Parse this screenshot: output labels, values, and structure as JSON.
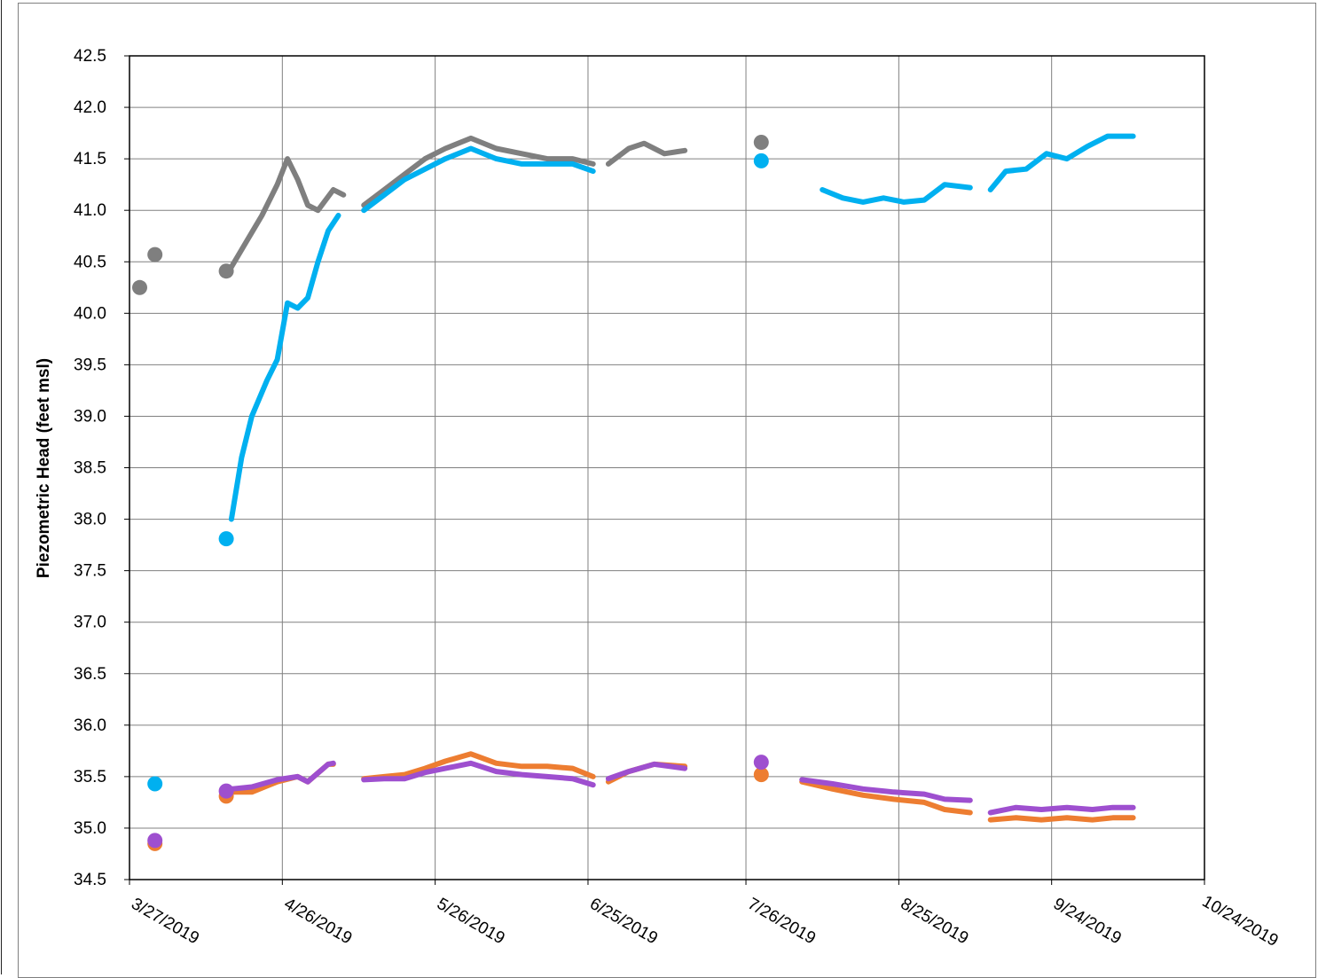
{
  "chart_data": {
    "type": "line",
    "title": "",
    "xlabel": "",
    "ylabel": "Piezometric Head (feet  msl)",
    "grid": true,
    "legend": "none",
    "xlim": [
      "2019-03-27",
      "2019-10-24"
    ],
    "ylim": [
      34.5,
      42.5
    ],
    "x_ticks": [
      "3/27/2019",
      "4/26/2019",
      "5/26/2019",
      "6/25/2019",
      "7/26/2019",
      "8/25/2019",
      "9/24/2019",
      "10/24/2019"
    ],
    "y_ticks": [
      "34.5",
      "35.0",
      "35.5",
      "36.0",
      "36.5",
      "37.0",
      "37.5",
      "38.0",
      "38.5",
      "39.0",
      "39.5",
      "40.0",
      "40.5",
      "41.0",
      "41.5",
      "42.0",
      "42.5"
    ],
    "series": [
      {
        "color": "#7f7f7f",
        "marker_points": [
          [
            "2019-03-29",
            40.25
          ],
          [
            "2019-04-01",
            40.57
          ],
          [
            "2019-04-15",
            40.41
          ],
          [
            "2019-07-29",
            41.66
          ]
        ],
        "segments": [
          [
            [
              "2019-04-16",
              40.45
            ],
            [
              "2019-04-19",
              40.7
            ],
            [
              "2019-04-22",
              40.95
            ],
            [
              "2019-04-25",
              41.25
            ],
            [
              "2019-04-27",
              41.5
            ],
            [
              "2019-04-29",
              41.3
            ],
            [
              "2019-05-01",
              41.05
            ],
            [
              "2019-05-03",
              41.0
            ],
            [
              "2019-05-06",
              41.2
            ],
            [
              "2019-05-08",
              41.15
            ]
          ],
          [
            [
              "2019-05-12",
              41.05
            ],
            [
              "2019-05-16",
              41.2
            ],
            [
              "2019-05-20",
              41.35
            ],
            [
              "2019-05-24",
              41.5
            ],
            [
              "2019-05-28",
              41.6
            ],
            [
              "2019-06-02",
              41.7
            ],
            [
              "2019-06-07",
              41.6
            ],
            [
              "2019-06-12",
              41.55
            ],
            [
              "2019-06-17",
              41.5
            ],
            [
              "2019-06-22",
              41.5
            ],
            [
              "2019-06-26",
              41.45
            ]
          ],
          [
            [
              "2019-06-29",
              41.45
            ],
            [
              "2019-07-03",
              41.6
            ],
            [
              "2019-07-06",
              41.65
            ],
            [
              "2019-07-10",
              41.55
            ],
            [
              "2019-07-14",
              41.58
            ]
          ]
        ]
      },
      {
        "color": "#00b0f0",
        "marker_points": [
          [
            "2019-04-01",
            35.43
          ],
          [
            "2019-04-15",
            37.81
          ],
          [
            "2019-07-29",
            41.48
          ]
        ],
        "segments": [
          [
            [
              "2019-04-16",
              38.0
            ],
            [
              "2019-04-18",
              38.6
            ],
            [
              "2019-04-20",
              39.0
            ],
            [
              "2019-04-23",
              39.35
            ],
            [
              "2019-04-25",
              39.55
            ],
            [
              "2019-04-27",
              40.1
            ],
            [
              "2019-04-29",
              40.05
            ],
            [
              "2019-05-01",
              40.15
            ],
            [
              "2019-05-03",
              40.5
            ],
            [
              "2019-05-05",
              40.8
            ],
            [
              "2019-05-07",
              40.95
            ]
          ],
          [
            [
              "2019-05-12",
              41.0
            ],
            [
              "2019-05-16",
              41.15
            ],
            [
              "2019-05-20",
              41.3
            ],
            [
              "2019-05-24",
              41.4
            ],
            [
              "2019-05-28",
              41.5
            ],
            [
              "2019-06-02",
              41.6
            ],
            [
              "2019-06-07",
              41.5
            ],
            [
              "2019-06-12",
              41.45
            ],
            [
              "2019-06-17",
              41.45
            ],
            [
              "2019-06-22",
              41.45
            ],
            [
              "2019-06-26",
              41.38
            ]
          ],
          [
            [
              "2019-08-10",
              41.2
            ],
            [
              "2019-08-14",
              41.12
            ],
            [
              "2019-08-18",
              41.08
            ],
            [
              "2019-08-22",
              41.12
            ],
            [
              "2019-08-26",
              41.08
            ],
            [
              "2019-08-30",
              41.1
            ],
            [
              "2019-09-03",
              41.25
            ],
            [
              "2019-09-08",
              41.22
            ]
          ],
          [
            [
              "2019-09-12",
              41.2
            ],
            [
              "2019-09-15",
              41.38
            ],
            [
              "2019-09-19",
              41.4
            ],
            [
              "2019-09-23",
              41.55
            ],
            [
              "2019-09-27",
              41.5
            ],
            [
              "2019-10-01",
              41.62
            ],
            [
              "2019-10-05",
              41.72
            ],
            [
              "2019-10-10",
              41.72
            ]
          ]
        ]
      },
      {
        "color": "#ed7d31",
        "marker_points": [
          [
            "2019-04-01",
            34.85
          ],
          [
            "2019-04-15",
            35.31
          ],
          [
            "2019-07-29",
            35.52
          ]
        ],
        "segments": [
          [
            [
              "2019-04-16",
              35.35
            ],
            [
              "2019-04-20",
              35.35
            ],
            [
              "2019-04-25",
              35.45
            ],
            [
              "2019-04-29",
              35.5
            ],
            [
              "2019-05-01",
              35.45
            ],
            [
              "2019-05-05",
              35.62
            ],
            [
              "2019-05-06",
              35.62
            ]
          ],
          [
            [
              "2019-05-12",
              35.48
            ],
            [
              "2019-05-16",
              35.5
            ],
            [
              "2019-05-20",
              35.52
            ],
            [
              "2019-05-24",
              35.58
            ],
            [
              "2019-05-28",
              35.65
            ],
            [
              "2019-06-02",
              35.72
            ],
            [
              "2019-06-07",
              35.63
            ],
            [
              "2019-06-12",
              35.6
            ],
            [
              "2019-06-17",
              35.6
            ],
            [
              "2019-06-22",
              35.58
            ],
            [
              "2019-06-26",
              35.5
            ]
          ],
          [
            [
              "2019-06-29",
              35.45
            ],
            [
              "2019-07-03",
              35.55
            ],
            [
              "2019-07-08",
              35.62
            ],
            [
              "2019-07-14",
              35.6
            ]
          ],
          [
            [
              "2019-08-06",
              35.45
            ],
            [
              "2019-08-12",
              35.38
            ],
            [
              "2019-08-18",
              35.32
            ],
            [
              "2019-08-24",
              35.28
            ],
            [
              "2019-08-30",
              35.25
            ],
            [
              "2019-09-03",
              35.18
            ],
            [
              "2019-09-08",
              35.15
            ]
          ],
          [
            [
              "2019-09-12",
              35.08
            ],
            [
              "2019-09-17",
              35.1
            ],
            [
              "2019-09-22",
              35.08
            ],
            [
              "2019-09-27",
              35.1
            ],
            [
              "2019-10-02",
              35.08
            ],
            [
              "2019-10-06",
              35.1
            ],
            [
              "2019-10-10",
              35.1
            ]
          ]
        ]
      },
      {
        "color": "#9e4fcf",
        "marker_points": [
          [
            "2019-04-01",
            34.88
          ],
          [
            "2019-04-15",
            35.36
          ],
          [
            "2019-07-29",
            35.64
          ]
        ],
        "segments": [
          [
            [
              "2019-04-16",
              35.38
            ],
            [
              "2019-04-20",
              35.4
            ],
            [
              "2019-04-25",
              35.47
            ],
            [
              "2019-04-29",
              35.5
            ],
            [
              "2019-05-01",
              35.45
            ],
            [
              "2019-05-05",
              35.62
            ],
            [
              "2019-05-06",
              35.63
            ]
          ],
          [
            [
              "2019-05-12",
              35.47
            ],
            [
              "2019-05-16",
              35.48
            ],
            [
              "2019-05-20",
              35.48
            ],
            [
              "2019-05-24",
              35.54
            ],
            [
              "2019-05-28",
              35.58
            ],
            [
              "2019-06-02",
              35.63
            ],
            [
              "2019-06-07",
              35.55
            ],
            [
              "2019-06-12",
              35.52
            ],
            [
              "2019-06-17",
              35.5
            ],
            [
              "2019-06-22",
              35.48
            ],
            [
              "2019-06-26",
              35.42
            ]
          ],
          [
            [
              "2019-06-29",
              35.48
            ],
            [
              "2019-07-03",
              35.55
            ],
            [
              "2019-07-08",
              35.62
            ],
            [
              "2019-07-14",
              35.58
            ]
          ],
          [
            [
              "2019-08-06",
              35.47
            ],
            [
              "2019-08-12",
              35.43
            ],
            [
              "2019-08-18",
              35.38
            ],
            [
              "2019-08-24",
              35.35
            ],
            [
              "2019-08-30",
              35.33
            ],
            [
              "2019-09-03",
              35.28
            ],
            [
              "2019-09-08",
              35.27
            ]
          ],
          [
            [
              "2019-09-12",
              35.15
            ],
            [
              "2019-09-17",
              35.2
            ],
            [
              "2019-09-22",
              35.18
            ],
            [
              "2019-09-27",
              35.2
            ],
            [
              "2019-10-02",
              35.18
            ],
            [
              "2019-10-06",
              35.2
            ],
            [
              "2019-10-10",
              35.2
            ]
          ]
        ]
      }
    ]
  }
}
